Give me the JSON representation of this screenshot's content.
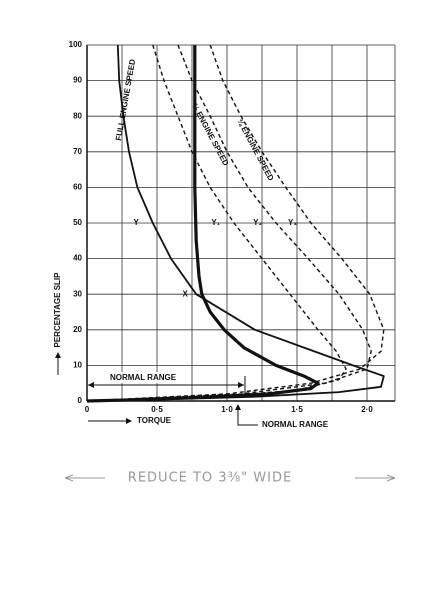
{
  "chart_data": {
    "type": "line",
    "x_label": "TORQUE",
    "y_label": "PERCENTAGE SLIP",
    "xlim": [
      0,
      2.2
    ],
    "ylim": [
      0,
      100
    ],
    "xticks": [
      0,
      {
        "value": 0.5,
        "label": "0·5"
      },
      {
        "value": 1.0,
        "label": "1·0"
      },
      {
        "value": 1.5,
        "label": "1·5"
      },
      {
        "value": 2.0,
        "label": "2·0"
      }
    ],
    "xminor": [
      0.25,
      0.75,
      1.25,
      1.75,
      2.2
    ],
    "yticks": [
      0,
      10,
      20,
      30,
      40,
      50,
      60,
      70,
      80,
      90,
      100
    ],
    "grid": true,
    "series": [
      {
        "name": "Y",
        "color": "#111111",
        "style": "solid",
        "width": 1.8,
        "x": [
          0.22,
          0.23,
          0.26,
          0.3,
          0.36,
          0.47,
          0.6,
          0.78,
          1.2,
          1.55,
          1.9,
          2.12,
          2.1,
          1.8,
          1.2,
          0.6,
          0
        ],
        "values": [
          100,
          90,
          80,
          70,
          60,
          50,
          40,
          30,
          20,
          15,
          10,
          7,
          4,
          2.5,
          1.2,
          0.5,
          0
        ]
      },
      {
        "name": "X",
        "color": "#111111",
        "style": "solid",
        "width": 3.2,
        "x": [
          0.77,
          0.77,
          0.77,
          0.78,
          0.8,
          0.82,
          0.88,
          0.98,
          1.12,
          1.35,
          1.55,
          1.65,
          1.6,
          1.3,
          0.8,
          0.3,
          0
        ],
        "values": [
          100,
          80,
          60,
          45,
          35,
          30,
          25,
          20,
          15,
          10,
          7,
          5,
          3.5,
          2,
          1,
          0.3,
          0
        ]
      },
      {
        "name": "Y₁",
        "color": "#111111",
        "style": "dashed",
        "width": 1.4,
        "x": [
          0.47,
          0.55,
          0.65,
          0.75,
          0.88,
          1.05,
          1.25,
          1.45,
          1.65,
          1.78,
          1.85,
          1.8,
          1.5,
          0.9,
          0
        ],
        "values": [
          100,
          90,
          80,
          70,
          60,
          50,
          40,
          30,
          20,
          14,
          9,
          6,
          3,
          1.2,
          0
        ]
      },
      {
        "name": "Y₂",
        "color": "#111111",
        "style": "dashed",
        "width": 1.4,
        "x": [
          0.65,
          0.75,
          0.88,
          1.0,
          1.15,
          1.35,
          1.58,
          1.8,
          1.97,
          2.03,
          2.0,
          1.7,
          1.1,
          0
        ],
        "values": [
          100,
          90,
          80,
          70,
          60,
          50,
          40,
          30,
          20,
          14,
          9,
          5,
          2,
          0
        ]
      },
      {
        "name": "Y₃",
        "color": "#111111",
        "style": "dashed",
        "width": 1.4,
        "x": [
          0.88,
          0.97,
          1.1,
          1.25,
          1.42,
          1.6,
          1.82,
          2.02,
          2.12,
          2.1,
          1.95,
          1.6,
          1.0,
          0
        ],
        "values": [
          100,
          90,
          80,
          70,
          60,
          50,
          40,
          30,
          20,
          14,
          9,
          5,
          2,
          0
        ]
      }
    ],
    "annotations": {
      "full_speed": "FULL ENGINE SPEED",
      "half_speed": "½ ENGINE SPEED",
      "three_quarter_speed": "¾ ENGINE SPEED",
      "normal_range_top": "NORMAL RANGE",
      "normal_range_bottom": "NORMAL RANGE",
      "note": "REDUCE TO 3⅜\" WIDE"
    }
  }
}
